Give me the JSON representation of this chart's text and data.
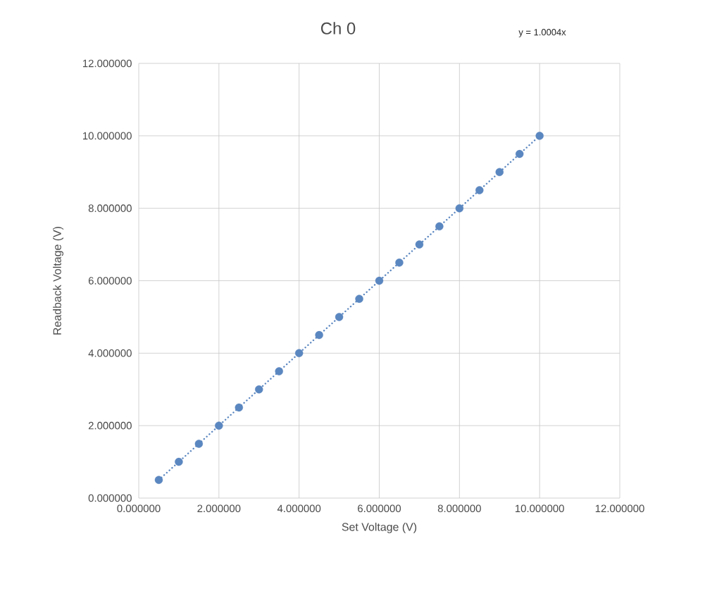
{
  "chart_data": {
    "type": "scatter",
    "title": "Ch 0",
    "xlabel": "Set Voltage (V)",
    "ylabel": "Readback Voltage (V)",
    "annotations": [
      "y = 1.0004x"
    ],
    "series": [
      {
        "type": "scatter",
        "color": "#5b87c0",
        "marker": "circle",
        "x": [
          0.5,
          1,
          1.5,
          2,
          2.5,
          3,
          3.5,
          4,
          4.5,
          5,
          5.5,
          6,
          6.5,
          7,
          7.5,
          8,
          8.5,
          9,
          9.5,
          10
        ],
        "values": [
          0.5,
          1,
          1.5,
          2,
          2.5,
          3,
          3.5,
          4,
          4.5,
          5,
          5.5,
          6,
          6.5,
          7,
          7.5,
          8,
          8.5,
          9,
          9.5,
          10
        ]
      },
      {
        "type": "line",
        "color": "#5b87c0",
        "line_style": "dotted",
        "x": [
          0.5,
          10
        ],
        "values": [
          0.5,
          10
        ]
      }
    ],
    "xlim": [
      0,
      12
    ],
    "ylim": [
      0,
      12
    ],
    "xticks": [
      {
        "value": 0,
        "label": "0.000000"
      },
      {
        "value": 2,
        "label": "2.000000"
      },
      {
        "value": 4,
        "label": "4.000000"
      },
      {
        "value": 6,
        "label": "6.000000"
      },
      {
        "value": 8,
        "label": "8.000000"
      },
      {
        "value": 10,
        "label": "10.000000"
      },
      {
        "value": 12,
        "label": "12.000000"
      }
    ],
    "yticks": [
      {
        "value": 0,
        "label": "0.000000"
      },
      {
        "value": 2,
        "label": "2.000000"
      },
      {
        "value": 4,
        "label": "4.000000"
      },
      {
        "value": 6,
        "label": "6.000000"
      },
      {
        "value": 8,
        "label": "8.000000"
      },
      {
        "value": 10,
        "label": "10.000000"
      },
      {
        "value": 12,
        "label": "12.000000"
      }
    ],
    "grid": true
  }
}
